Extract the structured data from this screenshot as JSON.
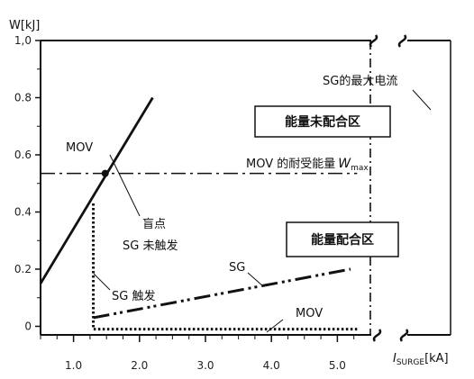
{
  "chart_data": {
    "type": "line",
    "title": "",
    "ylabel": "W[kJ]",
    "xlabel": "I_SURGE[kA]",
    "xlabel_main": "I",
    "xlabel_sub": "SURGE",
    "xlabel_unit": "[kA]",
    "xlim": [
      0.5,
      5.35
    ],
    "ylim": [
      -0.03,
      1.0
    ],
    "xticks": [
      {
        "value": 1.0,
        "label": "1.0"
      },
      {
        "value": 2.0,
        "label": "2.0"
      },
      {
        "value": 3.0,
        "label": "3.0"
      },
      {
        "value": 4.0,
        "label": "4.0"
      },
      {
        "value": 5.0,
        "label": "5.0"
      }
    ],
    "yticks": [
      {
        "value": 1.0,
        "label": "1,0"
      },
      {
        "value": 0.8,
        "label": "0.8"
      },
      {
        "value": 0.6,
        "label": "0.6"
      },
      {
        "value": 0.4,
        "label": "0.4"
      },
      {
        "value": 0.2,
        "label": "0.2"
      },
      {
        "value": 0.0,
        "label": "0"
      }
    ],
    "series": [
      {
        "name": "MOV",
        "style": "solid",
        "x": [
          0.5,
          2.2
        ],
        "y": [
          0.15,
          0.8
        ]
      },
      {
        "name": "SG",
        "style": "dash-dot-dot",
        "x": [
          1.3,
          5.2
        ],
        "y": [
          0.03,
          0.2
        ]
      },
      {
        "name": "MOV",
        "style": "dotted",
        "x": [
          1.3,
          1.3,
          5.3
        ],
        "y": [
          0.43,
          -0.01,
          -0.01
        ]
      }
    ],
    "mov_wmax": {
      "y": 0.535,
      "x_range": [
        0.5,
        5.3
      ]
    },
    "blind_point": {
      "x": 1.48,
      "y": 0.535
    },
    "sg_max_current_x": 5.5,
    "annotations": {
      "mov_label_upper": "MOV",
      "sg_label": "SG",
      "mov_label_lower": "MOV",
      "blind_line1": "盲点",
      "blind_line2": "SG 未触发",
      "sg_trigger": "SG 触发",
      "mov_wmax_text": "MOV 的耐受能量",
      "wmax_symbol": "W",
      "wmax_sub": "max",
      "sg_max": "SG的最大电流",
      "box_uncoordinated": "能量未配合区",
      "box_coordinated": "能量配合区"
    }
  }
}
